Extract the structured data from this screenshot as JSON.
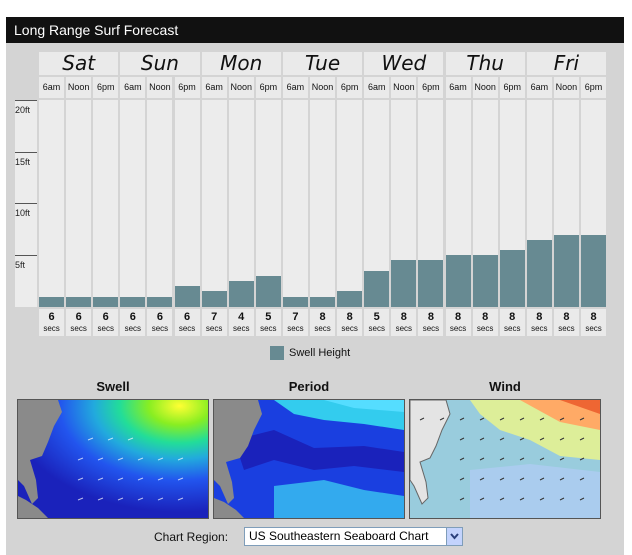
{
  "title": "Long Range Surf Forecast",
  "days": [
    "Sat",
    "Sun",
    "Mon",
    "Tue",
    "Wed",
    "Thu",
    "Fri"
  ],
  "time_labels": [
    "6am",
    "Noon",
    "6pm",
    "6am",
    "Noon",
    "6pm",
    "6am",
    "Noon",
    "6pm",
    "6am",
    "Noon",
    "6pm",
    "6am",
    "Noon",
    "6pm",
    "6am",
    "Noon",
    "6pm",
    "6am",
    "Noon",
    "6pm"
  ],
  "y_ticks": [
    "20ft",
    "15ft",
    "10ft",
    "5ft"
  ],
  "period_unit": "secs",
  "chart_data": {
    "type": "bar",
    "series": [
      {
        "name": "Swell Height",
        "values": [
          1,
          1,
          1,
          1,
          1,
          2,
          1.5,
          2.5,
          3,
          1,
          1,
          1.5,
          3.5,
          4.5,
          4.5,
          5,
          5,
          5.5,
          6.5,
          7,
          7
        ]
      }
    ],
    "periods": [
      6,
      6,
      6,
      6,
      6,
      6,
      7,
      4,
      5,
      7,
      8,
      8,
      5,
      8,
      8,
      8,
      8,
      8,
      8,
      8,
      8
    ],
    "ylabel": "",
    "ylim": [
      0,
      20
    ],
    "y_unit": "ft",
    "legend": "bottom-center",
    "colors": {
      "bar": "#678a92"
    }
  },
  "legend": {
    "label": "Swell Height"
  },
  "maps": [
    {
      "title": "Swell",
      "icon": "swell-map-image"
    },
    {
      "title": "Period",
      "icon": "period-map-image"
    },
    {
      "title": "Wind",
      "icon": "wind-map-image"
    }
  ],
  "region": {
    "label": "Chart Region:",
    "selected": "US Southeastern Seaboard Chart"
  }
}
